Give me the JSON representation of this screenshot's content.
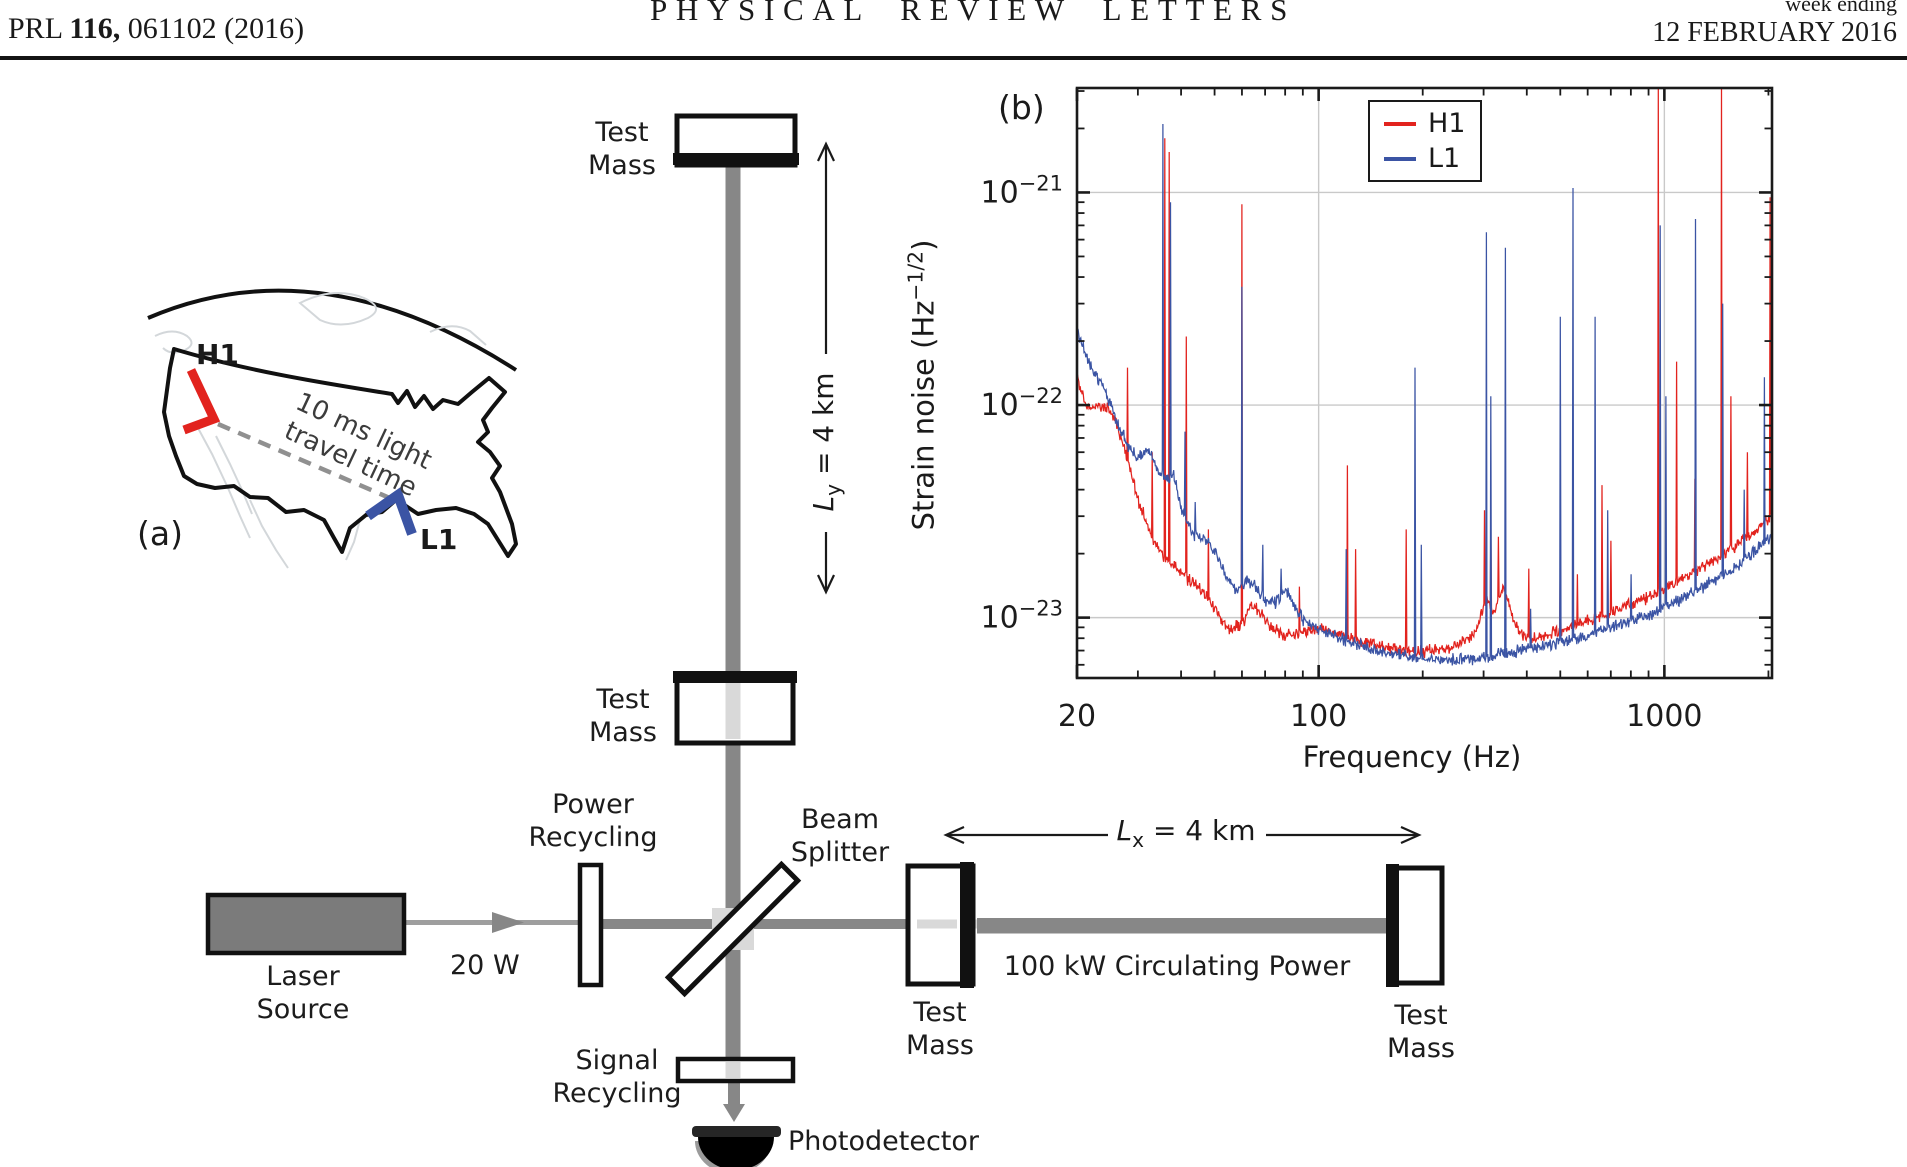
{
  "header": {
    "prl_prefix": "PRL ",
    "prl_volume": "116,",
    "prl_rest": " 061102 (2016)",
    "journal_title": "PHYSICAL REVIEW LETTERS",
    "week_ending": "week ending",
    "issue_date": "12 FEBRUARY 2016"
  },
  "map": {
    "panel_label": "(a)",
    "h1_label": "H1",
    "l1_label": "L1",
    "annotation_line1": "10 ms light",
    "annotation_line2": "travel time",
    "h1_color": "#e2231e",
    "l1_color": "#3b54a4"
  },
  "schematic": {
    "test_mass_line1": "Test",
    "test_mass_line2": "Mass",
    "power_recycling_line1": "Power",
    "power_recycling_line2": "Recycling",
    "signal_recycling_line1": "Signal",
    "signal_recycling_line2": "Recycling",
    "beam_splitter_line1": "Beam",
    "beam_splitter_line2": "Splitter",
    "laser_line1": "Laser",
    "laser_line2": "Source",
    "input_power": "20 W",
    "circulating_power": "100 kW Circulating Power",
    "photodetector": "Photodetector",
    "arm_symbol": "L",
    "ly_sub": "y",
    "lx_sub": "x",
    "arm_value": " = 4 km",
    "beam_color": "#878787",
    "beam_light_color": "#d9d9d9",
    "laser_fill": "#7b7b7b"
  },
  "chart_data": {
    "type": "line",
    "panel_label": "(b)",
    "xscale": "log",
    "yscale": "log",
    "xlim": [
      20,
      2048
    ],
    "ylim": [
      5.2e-24,
      3.1e-21
    ],
    "xticks": [
      20,
      100,
      1000
    ],
    "ytick_base": "10",
    "ytick_exponents": [
      -21,
      -22,
      -23
    ],
    "xlabel": "Frequency (Hz)",
    "ylabel_prefix": "Strain noise (Hz",
    "ylabel_sup": "−1/2",
    "ylabel_suffix": ")",
    "grid": true,
    "legend_position": "top-center",
    "series": [
      {
        "name": "H1",
        "color": "#e2231e",
        "baseline": [
          [
            20,
            1.35e-22
          ],
          [
            21.5,
            9.5e-23
          ],
          [
            23,
            1e-22
          ],
          [
            25,
            9.5e-23
          ],
          [
            26.5,
            7.5e-23
          ],
          [
            28,
            5.5e-23
          ],
          [
            30,
            3.6e-23
          ],
          [
            33,
            2.4e-23
          ],
          [
            36,
            1.9e-23
          ],
          [
            40,
            1.6e-23
          ],
          [
            45,
            1.4e-23
          ],
          [
            50,
            1.1e-23
          ],
          [
            55,
            8.8e-24
          ],
          [
            60,
            9.2e-24
          ],
          [
            64,
            1.15e-23
          ],
          [
            68,
            1.05e-23
          ],
          [
            72,
            9.2e-24
          ],
          [
            80,
            8.2e-24
          ],
          [
            90,
            8.6e-24
          ],
          [
            100,
            8.9e-24
          ],
          [
            115,
            8.3e-24
          ],
          [
            140,
            7.6e-24
          ],
          [
            170,
            7.1e-24
          ],
          [
            200,
            6.9e-24
          ],
          [
            250,
            7.3e-24
          ],
          [
            285,
            8.5e-24
          ],
          [
            305,
            1.25e-23
          ],
          [
            320,
            1.05e-23
          ],
          [
            345,
            1.4e-23
          ],
          [
            365,
            9.5e-24
          ],
          [
            400,
            7.9e-24
          ],
          [
            460,
            8.3e-24
          ],
          [
            550,
            9.2e-24
          ],
          [
            700,
            1.05e-23
          ],
          [
            850,
            1.2e-23
          ],
          [
            1000,
            1.35e-23
          ],
          [
            1200,
            1.6e-23
          ],
          [
            1500,
            2e-23
          ],
          [
            1800,
            2.5e-23
          ],
          [
            2048,
            3e-23
          ]
        ],
        "spikes": [
          [
            28,
            1.5e-22
          ],
          [
            33,
            6e-23
          ],
          [
            35.9,
            1.8e-21
          ],
          [
            36.9,
            1.55e-21
          ],
          [
            41.5,
            2.1e-22
          ],
          [
            48,
            2.6e-23
          ],
          [
            60,
            8.8e-22
          ],
          [
            88,
            1.4e-23
          ],
          [
            121,
            5.2e-23
          ],
          [
            128,
            2.1e-23
          ],
          [
            179,
            2.6e-23
          ],
          [
            302,
            3.2e-23
          ],
          [
            315,
            2.6e-23
          ],
          [
            331,
            2.4e-23
          ],
          [
            406,
            1.7e-23
          ],
          [
            500,
            1.9e-23
          ],
          [
            560,
            1.6e-23
          ],
          [
            660,
            4.2e-23
          ],
          [
            700,
            2.3e-23
          ],
          [
            960,
            3.2e-21
          ],
          [
            1084,
            1.6e-22
          ],
          [
            1225,
            4.5e-23
          ],
          [
            1460,
            3.2e-21
          ],
          [
            1560,
            1.1e-22
          ],
          [
            1740,
            6e-23
          ],
          [
            2020,
            9.5e-22
          ]
        ]
      },
      {
        "name": "L1",
        "color": "#3b54a4",
        "baseline": [
          [
            20,
            2.2e-22
          ],
          [
            22,
            1.5e-22
          ],
          [
            24,
            1.2e-22
          ],
          [
            26,
            8.5e-23
          ],
          [
            28,
            6.5e-23
          ],
          [
            30,
            5.6e-23
          ],
          [
            32,
            6.2e-23
          ],
          [
            34,
            5e-23
          ],
          [
            36,
            4.4e-23
          ],
          [
            38,
            4.7e-23
          ],
          [
            40,
            3.3e-23
          ],
          [
            43,
            2.5e-23
          ],
          [
            46,
            2.35e-23
          ],
          [
            50,
            2.1e-23
          ],
          [
            54,
            1.55e-23
          ],
          [
            58,
            1.35e-23
          ],
          [
            62,
            1.5e-23
          ],
          [
            66,
            1.38e-23
          ],
          [
            70,
            1.2e-23
          ],
          [
            75,
            1.18e-23
          ],
          [
            80,
            1.35e-23
          ],
          [
            84,
            1.2e-23
          ],
          [
            90,
            9.8e-24
          ],
          [
            100,
            8.8e-24
          ],
          [
            115,
            8e-24
          ],
          [
            140,
            7.2e-24
          ],
          [
            170,
            6.7e-24
          ],
          [
            200,
            6.4e-24
          ],
          [
            250,
            6.3e-24
          ],
          [
            300,
            6.5e-24
          ],
          [
            350,
            6.8e-24
          ],
          [
            420,
            7.2e-24
          ],
          [
            500,
            7.7e-24
          ],
          [
            600,
            8.3e-24
          ],
          [
            700,
            9e-24
          ],
          [
            850,
            1e-23
          ],
          [
            1000,
            1.1e-23
          ],
          [
            1200,
            1.3e-23
          ],
          [
            1500,
            1.6e-23
          ],
          [
            1800,
            2e-23
          ],
          [
            2048,
            2.4e-23
          ]
        ],
        "spikes": [
          [
            35.5,
            2.1e-21
          ],
          [
            37.3,
            9e-22
          ],
          [
            41,
            7.5e-23
          ],
          [
            44,
            3.5e-23
          ],
          [
            60,
            3.6e-22
          ],
          [
            69,
            2.2e-23
          ],
          [
            78,
            1.7e-23
          ],
          [
            120,
            2.1e-23
          ],
          [
            190,
            1.5e-22
          ],
          [
            198,
            2.2e-23
          ],
          [
            306,
            6.5e-22
          ],
          [
            315,
            1.1e-22
          ],
          [
            347,
            5.5e-22
          ],
          [
            410,
            1.1e-23
          ],
          [
            500,
            2.6e-22
          ],
          [
            545,
            1.05e-21
          ],
          [
            630,
            2.6e-22
          ],
          [
            685,
            3.2e-23
          ],
          [
            800,
            1.6e-23
          ],
          [
            973,
            7e-22
          ],
          [
            1010,
            1.1e-22
          ],
          [
            1230,
            7.5e-22
          ],
          [
            1472,
            3e-22
          ],
          [
            1700,
            4e-23
          ],
          [
            1950,
            1.35e-22
          ]
        ]
      }
    ]
  }
}
